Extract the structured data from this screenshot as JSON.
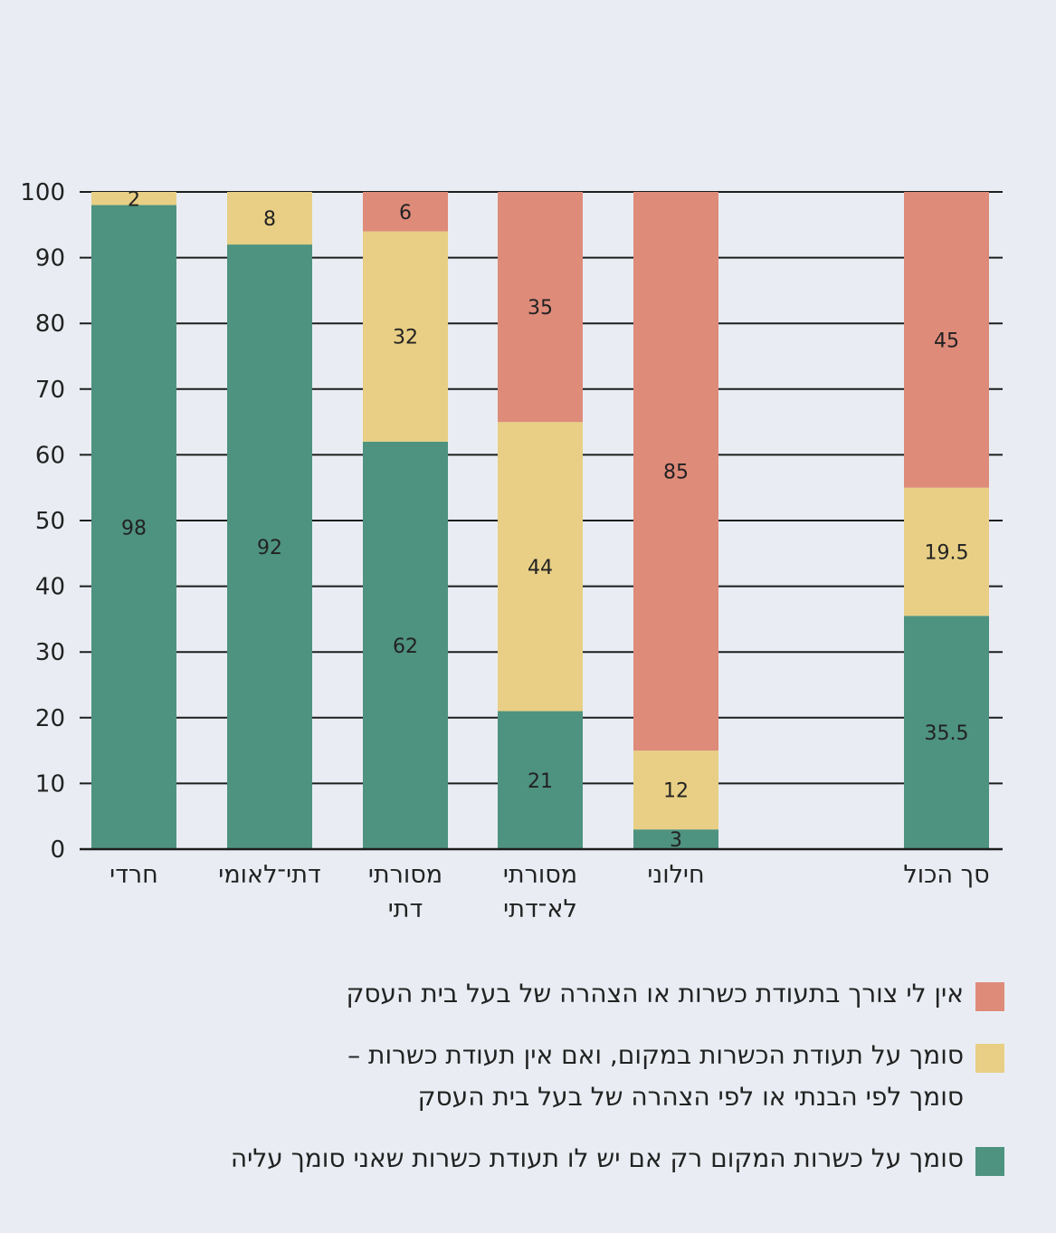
{
  "chart_data": {
    "type": "stacked-bar",
    "categories": [
      "חרדי",
      "דתי־לאומי",
      "מסורתי\nדתי",
      "מסורתי\nלא־דתי",
      "חילוני",
      "סך הכול"
    ],
    "series": [
      {
        "name": "סומך על כשרות המקום רק אם יש לו תעודת כשרות שאני סומך עליה",
        "color": "#4e937f",
        "values": [
          98,
          92,
          62,
          21,
          3,
          35.5
        ]
      },
      {
        "name": "סומך על תעודת הכשרות במקום, ואם אין תעודת כשרות – סומך לפי הבנתי או לפי הצהרה של בעל בית העסק",
        "color": "#e8cf85",
        "values": [
          2,
          8,
          32,
          44,
          12,
          19.5
        ]
      },
      {
        "name": "אין לי צורך בתעודת כשרות או הצהרה של בעל בית העסק",
        "color": "#df8b7a",
        "values": [
          0,
          0,
          6,
          35,
          85,
          45
        ]
      }
    ],
    "yticks": [
      0,
      10,
      20,
      30,
      40,
      50,
      60,
      70,
      80,
      90,
      100
    ],
    "ylim": [
      0,
      100
    ],
    "grid": true,
    "legend_position": "bottom"
  },
  "legend": {
    "items": [
      {
        "color": "#df8b7a",
        "lines": [
          "אין לי צורך בתעודת כשרות או הצהרה של בעל בית העסק"
        ]
      },
      {
        "color": "#e8cf85",
        "lines": [
          "סומך על תעודת הכשרות במקום, ואם אין תעודת כשרות –",
          "סומך לפי הבנתי או לפי הצהרה של בעל בית העסק"
        ]
      },
      {
        "color": "#4e937f",
        "lines": [
          "סומך על כשרות המקום רק אם יש לו תעודת כשרות שאני סומך עליה"
        ]
      }
    ]
  }
}
